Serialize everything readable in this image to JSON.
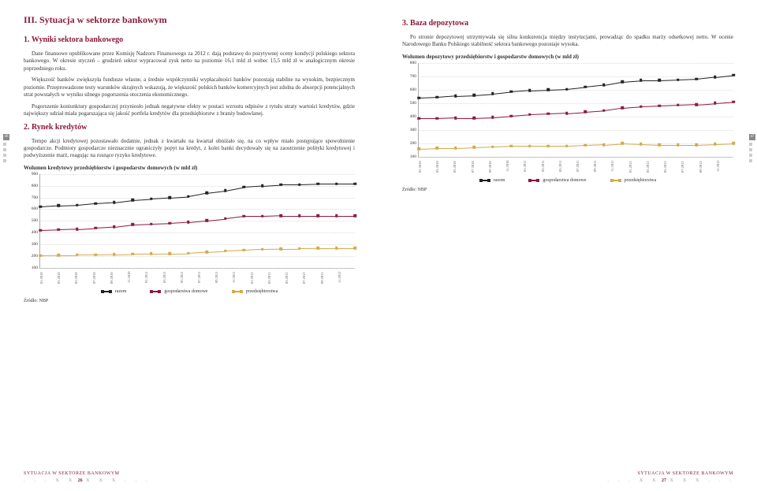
{
  "left": {
    "title": "III.  Sytuacja w sektorze bankowym",
    "sub1": "1. Wyniki sektora bankowego",
    "para1": "Dane finansowe opublikowane przez Komisję Nadzoru Finansowego za 2012 r. dają podstawę do pozytywnej oceny kondycji polskiego sektora bankowego. W okresie styczeń – grudzień sektor wypracował zysk netto na poziomie 16,1 mld zł wobec 15,5 mld zł w analogicznym okresie poprzedniego roku.",
    "para2": "Większość banków zwiększyła fundusze własne, a średnie współczynniki wypłacalności banków pozostają stabilne na wysokim, bezpiecznym poziomie. Przeprowadzone testy warunków skrajnych wskazują, że większość polskich banków komercyjnych jest zdolna do absorpcji potencjalnych strat powstałych w wyniku silnego pogorszenia otoczenia ekonomicznego.",
    "para3": "Pogorszenie koniunktury gospodarczej przyniosło jednak negatywne efekty w postaci wzrostu odpisów z tytułu utraty wartości kredytów, gdzie największy udział miała pogarszająca się jakość portfela kredytów dla przedsiębiorstw z branży budowlanej.",
    "sub2": "2. Rynek kredytów",
    "para4": "Tempo akcji kredytowej pozostawało dodatnie, jednak z kwartału na kwartał obniżało się, na co wpływ miało postępujące spowolnienie gospodarcze. Podmioty gospodarcze nieznacznie ograniczyły popyt na kredyt, z kolei banki decydowały się na zaostrzenie polityki kredytowej i podwyższenie marż, reagując na rosnące ryzyko kredytowe.",
    "chart_title": "Wolumen kredytowy przedsiębiorstw i gospodarstw domowych (w mld zł)",
    "source": "Źródło: NBP",
    "footer_cap": "SYTUACJA W SEKTORZE BANKOWYM",
    "page_num": "26",
    "side_num": "46"
  },
  "right": {
    "sub1": "3. Baza depozytowa",
    "para1": "Po stronie depozytowej utrzymywała się silna konkurencja między instytucjami, prowadząc do spadku marży odsetkowej netto. W ocenie Narodowego Banku Polskiego stabilność sektora bankowego pozostaje wysoka.",
    "chart_title": "Wolumen depozytowy przedsiębiorstw i gospodarstw domowych (w mld zł)",
    "source": "Źródło: NBP",
    "footer_cap": "SYTUACJA W SEKTORZE BANKOWYM",
    "page_num": "27",
    "side_num": "47"
  },
  "legend": {
    "razem": "razem",
    "gosp": "gospodarstwa domowe",
    "prze": "przedsiębiorstwa"
  },
  "chart_credit": {
    "type": "line",
    "ylim": [
      100,
      900
    ],
    "yticks": [
      100,
      200,
      300,
      400,
      500,
      600,
      700,
      800,
      900
    ],
    "xlabels": [
      "01.2010",
      "03.2010",
      "05.2010",
      "07.2010",
      "09.2010",
      "11.2010",
      "01.2011",
      "03.2011",
      "05.2011",
      "07.2011",
      "09.2011",
      "11.2011",
      "01.2012",
      "03.2012",
      "05.2012",
      "07.2012",
      "09.2012",
      "11.2012"
    ],
    "series": {
      "razem": {
        "color": "#222222",
        "values": [
          620,
          630,
          635,
          650,
          660,
          680,
          690,
          700,
          710,
          740,
          760,
          790,
          800,
          810,
          810,
          815,
          815,
          815
        ]
      },
      "gosp": {
        "color": "#8b1a3a",
        "values": [
          420,
          425,
          430,
          440,
          450,
          470,
          475,
          480,
          490,
          505,
          520,
          540,
          540,
          545,
          545,
          545,
          545,
          545
        ]
      },
      "prze": {
        "color": "#d4a94a",
        "values": [
          205,
          208,
          210,
          212,
          215,
          218,
          220,
          222,
          224,
          235,
          245,
          252,
          260,
          263,
          265,
          267,
          268,
          268
        ]
      }
    }
  },
  "chart_deposit": {
    "type": "line",
    "ylim": [
      100,
      800
    ],
    "yticks": [
      100,
      200,
      300,
      400,
      500,
      600,
      700,
      800
    ],
    "xlabels": [
      "01.2010",
      "03.2010",
      "05.2010",
      "07.2010",
      "09.2010",
      "11.2010",
      "01.2011",
      "03.2011",
      "05.2011",
      "07.2011",
      "09.2011",
      "11.2011",
      "01.2012",
      "03.2012",
      "05.2012",
      "07.2012",
      "09.2012",
      "11.2012"
    ],
    "series": {
      "razem": {
        "color": "#222222",
        "values": [
          540,
          545,
          555,
          560,
          570,
          585,
          595,
          600,
          605,
          620,
          635,
          660,
          670,
          670,
          675,
          680,
          695,
          710
        ]
      },
      "gosp": {
        "color": "#8b1a3a",
        "values": [
          385,
          385,
          390,
          390,
          395,
          405,
          415,
          420,
          425,
          435,
          445,
          465,
          475,
          480,
          485,
          490,
          500,
          510
        ]
      },
      "prze": {
        "color": "#d4a94a",
        "values": [
          160,
          165,
          165,
          170,
          175,
          180,
          180,
          180,
          180,
          185,
          190,
          200,
          195,
          190,
          190,
          190,
          195,
          200
        ]
      }
    }
  }
}
